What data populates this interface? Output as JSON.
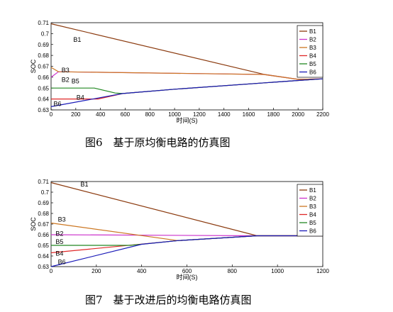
{
  "chart_data": [
    {
      "type": "line",
      "caption": "图6　基于原均衡电路的仿真图",
      "ylabel": "SOC",
      "xlabel": "时间(S)",
      "xlim": [
        0,
        2200
      ],
      "ylim": [
        0.63,
        0.71
      ],
      "xticks": [
        0,
        200,
        400,
        600,
        800,
        1000,
        1200,
        1400,
        1600,
        1800,
        2000,
        2200
      ],
      "yticks": [
        "0.63",
        "0.64",
        "0.65",
        "0.66",
        "0.67",
        "0.68",
        "0.69",
        "0.7",
        "0.71"
      ],
      "legend_position": "top-right",
      "series": [
        {
          "name": "B1",
          "color": "#8b3a0e",
          "points": [
            [
              0,
              0.709
            ],
            [
              1720,
              0.6627
            ],
            [
              2000,
              0.658
            ],
            [
              2200,
              0.6585
            ]
          ]
        },
        {
          "name": "B2",
          "color": "#cc33cc",
          "points": [
            [
              0,
              0.66
            ],
            [
              60,
              0.665
            ],
            [
              1720,
              0.6625
            ],
            [
              2000,
              0.658
            ],
            [
              2200,
              0.6585
            ]
          ]
        },
        {
          "name": "B3",
          "color": "#cc7722",
          "points": [
            [
              0,
              0.669
            ],
            [
              60,
              0.665
            ],
            [
              1720,
              0.6625
            ],
            [
              2000,
              0.658
            ],
            [
              2200,
              0.6585
            ]
          ]
        },
        {
          "name": "B4",
          "color": "#e02828",
          "points": [
            [
              0,
              0.64
            ],
            [
              380,
              0.64
            ],
            [
              580,
              0.645
            ],
            [
              1000,
              0.649
            ],
            [
              2000,
              0.657
            ],
            [
              2200,
              0.6585
            ]
          ]
        },
        {
          "name": "B5",
          "color": "#228822",
          "points": [
            [
              0,
              0.65
            ],
            [
              350,
              0.65
            ],
            [
              520,
              0.6455
            ],
            [
              580,
              0.645
            ],
            [
              1000,
              0.649
            ],
            [
              2000,
              0.657
            ],
            [
              2200,
              0.6585
            ]
          ]
        },
        {
          "name": "B6",
          "color": "#1a1ab8",
          "points": [
            [
              0,
              0.633
            ],
            [
              580,
              0.645
            ],
            [
              1000,
              0.649
            ],
            [
              2000,
              0.657
            ],
            [
              2200,
              0.6585
            ]
          ]
        }
      ],
      "annotations": [
        {
          "text": "B1",
          "x": 180,
          "y": 0.6945
        },
        {
          "text": "B3",
          "x": 85,
          "y": 0.6665
        },
        {
          "text": "B2",
          "x": 85,
          "y": 0.6575
        },
        {
          "text": "B5",
          "x": 165,
          "y": 0.6565
        },
        {
          "text": "B4",
          "x": 205,
          "y": 0.6415
        },
        {
          "text": "B6",
          "x": 20,
          "y": 0.6355
        }
      ]
    },
    {
      "type": "line",
      "caption": "图7　基于改进后的均衡电路仿真图",
      "ylabel": "SOC",
      "xlabel": "时间(S)",
      "xlim": [
        0,
        1200
      ],
      "ylim": [
        0.63,
        0.71
      ],
      "xticks": [
        0,
        200,
        400,
        600,
        800,
        1000,
        1200
      ],
      "yticks": [
        "0.63",
        "0.64",
        "0.65",
        "0.66",
        "0.67",
        "0.68",
        "0.69",
        "0.7",
        "0.71"
      ],
      "legend_position": "top-right",
      "series": [
        {
          "name": "B1",
          "color": "#8b3a0e",
          "points": [
            [
              0,
              0.709
            ],
            [
              910,
              0.659
            ],
            [
              1200,
              0.659
            ]
          ]
        },
        {
          "name": "B2",
          "color": "#cc33cc",
          "points": [
            [
              0,
              0.66
            ],
            [
              910,
              0.659
            ],
            [
              1200,
              0.659
            ]
          ]
        },
        {
          "name": "B3",
          "color": "#cc7722",
          "points": [
            [
              0,
              0.671
            ],
            [
              560,
              0.6545
            ],
            [
              910,
              0.659
            ],
            [
              1200,
              0.659
            ]
          ]
        },
        {
          "name": "B4",
          "color": "#e02828",
          "points": [
            [
              0,
              0.643
            ],
            [
              560,
              0.6545
            ],
            [
              910,
              0.659
            ],
            [
              1200,
              0.659
            ]
          ]
        },
        {
          "name": "B5",
          "color": "#228822",
          "points": [
            [
              0,
              0.65
            ],
            [
              350,
              0.65
            ],
            [
              420,
              0.6515
            ],
            [
              560,
              0.6545
            ],
            [
              910,
              0.659
            ],
            [
              1200,
              0.659
            ]
          ]
        },
        {
          "name": "B6",
          "color": "#1a1ab8",
          "points": [
            [
              0,
              0.63
            ],
            [
              400,
              0.651
            ],
            [
              560,
              0.6545
            ],
            [
              910,
              0.659
            ],
            [
              1200,
              0.659
            ]
          ]
        }
      ],
      "annotations": [
        {
          "text": "B1",
          "x": 130,
          "y": 0.7075
        },
        {
          "text": "B3",
          "x": 30,
          "y": 0.6745
        },
        {
          "text": "B2",
          "x": 20,
          "y": 0.661
        },
        {
          "text": "B5",
          "x": 20,
          "y": 0.6535
        },
        {
          "text": "B4",
          "x": 20,
          "y": 0.6425
        },
        {
          "text": "B6",
          "x": 30,
          "y": 0.6345
        }
      ]
    }
  ]
}
